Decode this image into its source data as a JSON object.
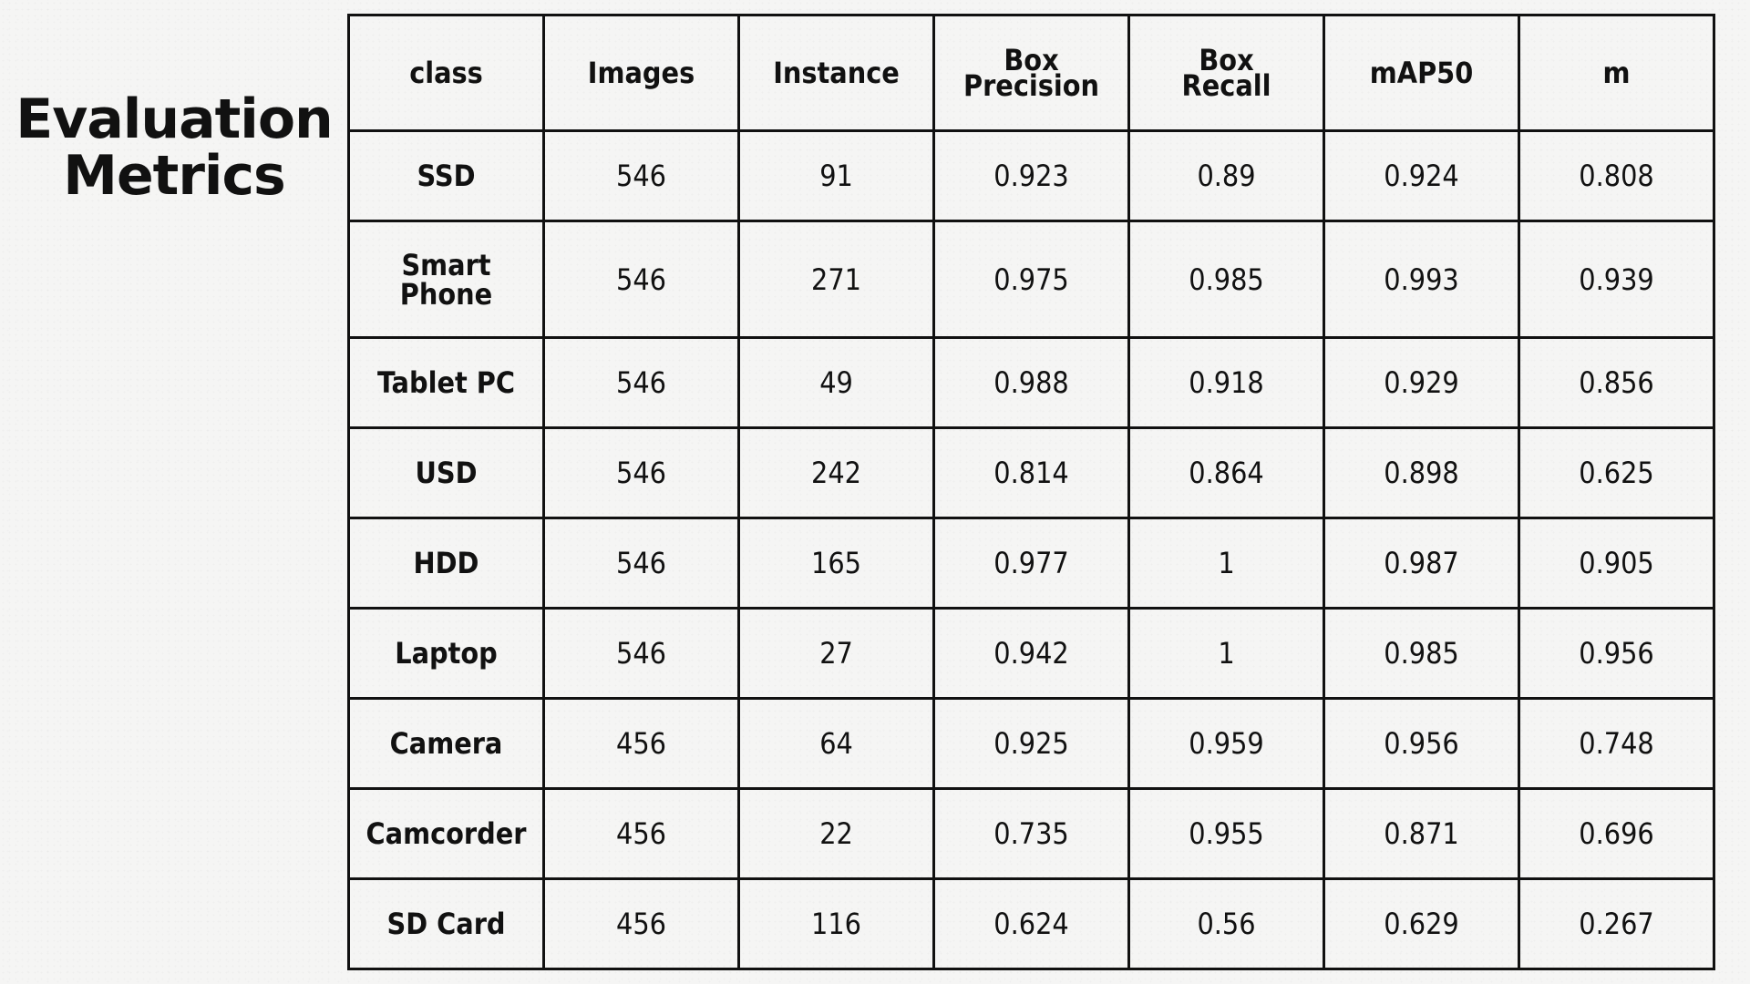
{
  "title": {
    "line1": "Evaluation",
    "line2": "Metrics"
  },
  "table": {
    "headers": [
      [
        "class"
      ],
      [
        "Images"
      ],
      [
        "Instance"
      ],
      [
        "Box",
        "Precision"
      ],
      [
        "Box",
        "Recall"
      ],
      [
        "mAP50"
      ],
      [
        "m"
      ]
    ],
    "rows": [
      {
        "class": [
          "SSD"
        ],
        "values": [
          "546",
          "91",
          "0.923",
          "0.89",
          "0.924",
          "0.808"
        ]
      },
      {
        "class": [
          "Smart",
          "Phone"
        ],
        "values": [
          "546",
          "271",
          "0.975",
          "0.985",
          "0.993",
          "0.939"
        ]
      },
      {
        "class": [
          "Tablet PC"
        ],
        "values": [
          "546",
          "49",
          "0.988",
          "0.918",
          "0.929",
          "0.856"
        ]
      },
      {
        "class": [
          "USD"
        ],
        "values": [
          "546",
          "242",
          "0.814",
          "0.864",
          "0.898",
          "0.625"
        ]
      },
      {
        "class": [
          "HDD"
        ],
        "values": [
          "546",
          "165",
          "0.977",
          "1",
          "0.987",
          "0.905"
        ]
      },
      {
        "class": [
          "Laptop"
        ],
        "values": [
          "546",
          "27",
          "0.942",
          "1",
          "0.985",
          "0.956"
        ]
      },
      {
        "class": [
          "Camera"
        ],
        "values": [
          "456",
          "64",
          "0.925",
          "0.959",
          "0.956",
          "0.748"
        ]
      },
      {
        "class": [
          "Camcorder"
        ],
        "values": [
          "456",
          "22",
          "0.735",
          "0.955",
          "0.871",
          "0.696"
        ]
      },
      {
        "class": [
          "SD Card"
        ],
        "values": [
          "456",
          "116",
          "0.624",
          "0.56",
          "0.629",
          "0.267"
        ]
      }
    ]
  }
}
